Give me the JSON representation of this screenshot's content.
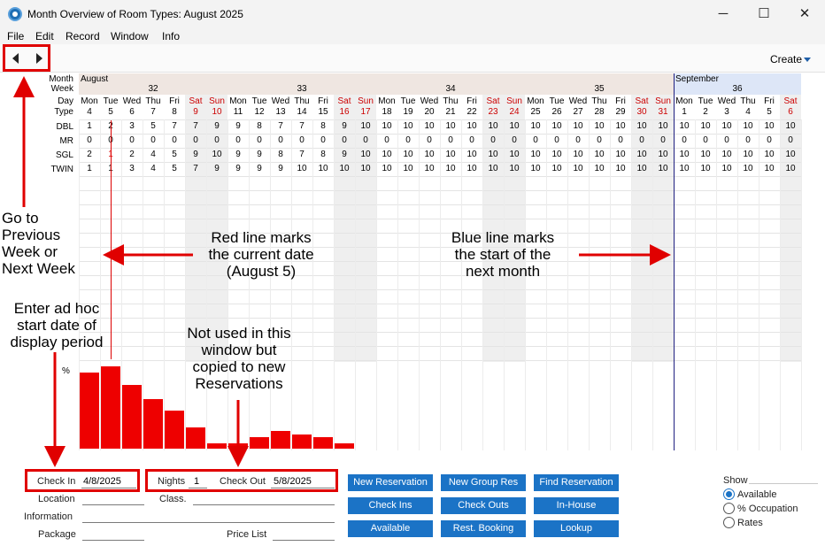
{
  "window": {
    "title": "Month Overview of Room Types: August 2025",
    "minimize_glyph": "─",
    "maximize_glyph": "☐",
    "close_glyph": "✕"
  },
  "menu": [
    "File",
    "Edit",
    "Record",
    "Window",
    "Info"
  ],
  "toolbar": {
    "create_label": "Create"
  },
  "grid": {
    "row_labels": {
      "month": "Month",
      "week": "Week",
      "day": "Day",
      "type": "Type"
    },
    "months": [
      {
        "name": "August",
        "start": 0
      },
      {
        "name": "September",
        "start": 28
      }
    ],
    "weeks": [
      {
        "number": "32",
        "start": 0,
        "span": 7
      },
      {
        "number": "33",
        "start": 7,
        "span": 7
      },
      {
        "number": "34",
        "start": 14,
        "span": 7
      },
      {
        "number": "35",
        "start": 21,
        "span": 7
      },
      {
        "number": "36",
        "start": 28,
        "span": 6
      }
    ],
    "days": [
      {
        "dow": "Mon",
        "date": "4"
      },
      {
        "dow": "Tue",
        "date": "5"
      },
      {
        "dow": "Wed",
        "date": "6"
      },
      {
        "dow": "Thu",
        "date": "7"
      },
      {
        "dow": "Fri",
        "date": "8"
      },
      {
        "dow": "Sat",
        "date": "9",
        "weekend": true
      },
      {
        "dow": "Sun",
        "date": "10",
        "weekend": true
      },
      {
        "dow": "Mon",
        "date": "11"
      },
      {
        "dow": "Tue",
        "date": "12"
      },
      {
        "dow": "Wed",
        "date": "13"
      },
      {
        "dow": "Thu",
        "date": "14"
      },
      {
        "dow": "Fri",
        "date": "15"
      },
      {
        "dow": "Sat",
        "date": "16",
        "weekend": true
      },
      {
        "dow": "Sun",
        "date": "17",
        "weekend": true
      },
      {
        "dow": "Mon",
        "date": "18"
      },
      {
        "dow": "Tue",
        "date": "19"
      },
      {
        "dow": "Wed",
        "date": "20"
      },
      {
        "dow": "Thu",
        "date": "21"
      },
      {
        "dow": "Fri",
        "date": "22"
      },
      {
        "dow": "Sat",
        "date": "23",
        "weekend": true
      },
      {
        "dow": "Sun",
        "date": "24",
        "weekend": true
      },
      {
        "dow": "Mon",
        "date": "25"
      },
      {
        "dow": "Tue",
        "date": "26"
      },
      {
        "dow": "Wed",
        "date": "27"
      },
      {
        "dow": "Thu",
        "date": "28"
      },
      {
        "dow": "Fri",
        "date": "29"
      },
      {
        "dow": "Sat",
        "date": "30",
        "weekend": true
      },
      {
        "dow": "Sun",
        "date": "31",
        "weekend": true
      },
      {
        "dow": "Mon",
        "date": "1"
      },
      {
        "dow": "Tue",
        "date": "2"
      },
      {
        "dow": "Wed",
        "date": "3"
      },
      {
        "dow": "Thu",
        "date": "4"
      },
      {
        "dow": "Fri",
        "date": "5"
      },
      {
        "dow": "Sat",
        "date": "6",
        "weekend": true
      }
    ],
    "current_date_index": 1,
    "next_month_index": 28,
    "rows": [
      {
        "type": "DBL",
        "values": [
          "1",
          "2",
          "3",
          "5",
          "7",
          "7",
          "9",
          "9",
          "8",
          "7",
          "7",
          "8",
          "9",
          "10",
          "10",
          "10",
          "10",
          "10",
          "10",
          "10",
          "10",
          "10",
          "10",
          "10",
          "10",
          "10",
          "10",
          "10",
          "10",
          "10",
          "10",
          "10",
          "10",
          "10"
        ]
      },
      {
        "type": "MR",
        "values": [
          "0",
          "0",
          "0",
          "0",
          "0",
          "0",
          "0",
          "0",
          "0",
          "0",
          "0",
          "0",
          "0",
          "0",
          "0",
          "0",
          "0",
          "0",
          "0",
          "0",
          "0",
          "0",
          "0",
          "0",
          "0",
          "0",
          "0",
          "0",
          "0",
          "0",
          "0",
          "0",
          "0",
          "0"
        ]
      },
      {
        "type": "SGL",
        "values": [
          "2",
          "1",
          "2",
          "4",
          "5",
          "9",
          "10",
          "9",
          "9",
          "8",
          "7",
          "8",
          "9",
          "10",
          "10",
          "10",
          "10",
          "10",
          "10",
          "10",
          "10",
          "10",
          "10",
          "10",
          "10",
          "10",
          "10",
          "10",
          "10",
          "10",
          "10",
          "10",
          "10",
          "10"
        ],
        "highlight_index": 1
      },
      {
        "type": "TWIN",
        "values": [
          "1",
          "1",
          "3",
          "4",
          "5",
          "7",
          "9",
          "9",
          "9",
          "9",
          "10",
          "10",
          "10",
          "10",
          "10",
          "10",
          "10",
          "10",
          "10",
          "10",
          "10",
          "10",
          "10",
          "10",
          "10",
          "10",
          "10",
          "10",
          "10",
          "10",
          "10",
          "10",
          "10",
          "10"
        ]
      }
    ],
    "colors": {
      "weekend_text": "#cc0000",
      "weekend_fill": "#efefef",
      "current_line": "#dd0000",
      "month_line": "#202080",
      "bar": "#ee0000",
      "sept_header": "#dde6f7",
      "aug_header": "#efe6e1"
    }
  },
  "occupancy_chart": {
    "label": "%",
    "values": [
      86,
      93,
      72,
      56,
      43,
      24,
      6,
      6,
      13,
      20,
      16,
      13,
      6
    ]
  },
  "annotations": {
    "nav": "Go to\nPrevious\nWeek or\nNext Week",
    "red_line": "Red line marks\nthe current date\n(August 5)",
    "blue_line": "Blue line marks\nthe start of the\nnext month",
    "checkin": "Enter ad hoc\nstart date of\ndisplay period",
    "nights": "Not used in this\nwindow but\ncopied to new\nReservations"
  },
  "form": {
    "check_in_label": "Check In",
    "check_in_value": "4/8/2025",
    "nights_label": "Nights",
    "nights_value": "1",
    "check_out_label": "Check Out",
    "check_out_value": "5/8/2025",
    "location_label": "Location",
    "class_label": "Class.",
    "information_label": "Information",
    "package_label": "Package",
    "price_list_label": "Price List"
  },
  "buttons": [
    "New Reservation",
    "New Group Res",
    "Find Reservation",
    "Check Ins",
    "Check Outs",
    "In-House",
    "Available",
    "Rest. Booking",
    "Lookup"
  ],
  "show": {
    "label": "Show",
    "options": [
      {
        "label": "Available",
        "selected": true
      },
      {
        "label": "% Occupation",
        "selected": false
      },
      {
        "label": "Rates",
        "selected": false
      }
    ]
  }
}
